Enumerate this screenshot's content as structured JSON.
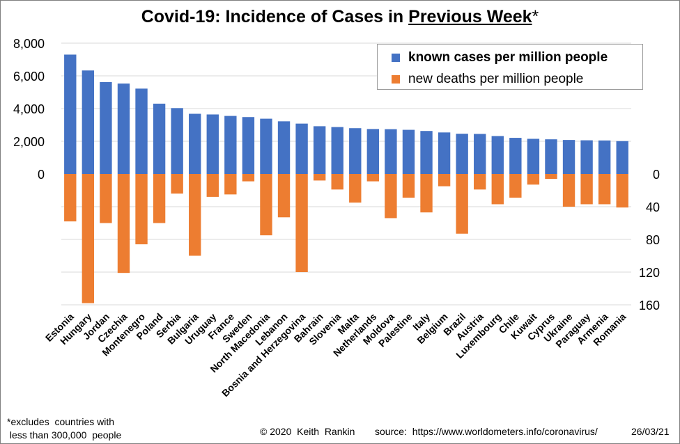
{
  "title": {
    "main": "Covid-19: Incidence of Cases in ",
    "underlined": "Previous Week",
    "suffix": "*"
  },
  "legend": {
    "cases_label": "known cases per million people",
    "deaths_label": "new deaths per million people"
  },
  "colors": {
    "cases": "#4472c4",
    "deaths": "#ed7d31",
    "grid": "#d9d9d9"
  },
  "footer": {
    "note_line1": "*excludes  countries with",
    "note_line2": " less than 300,000  people",
    "credit": "© 2020  Keith  Rankin",
    "source": "source:  https://www.worldometers.info/coronavirus/",
    "date": "26/03/21"
  },
  "chart_data": {
    "type": "bar",
    "categories": [
      "Estonia",
      "Hungary",
      "Jordan",
      "Czechia",
      "Montenegro",
      "Poland",
      "Serbia",
      "Bulgaria",
      "Uruguay",
      "France",
      "Sweden",
      "North Macedonia",
      "Lebanon",
      "Bosnia and Herzegovina",
      "Bahrain",
      "Slovenia",
      "Malta",
      "Netherlands",
      "Moldova",
      "Palestine",
      "Italy",
      "Belgium",
      "Brazil",
      "Austria",
      "Luxembourg",
      "Chile",
      "Kuwait",
      "Cyprus",
      "Ukraine",
      "Paraguay",
      "Armenia",
      "Romania"
    ],
    "series": [
      {
        "name": "known cases per million people",
        "axis": "left",
        "values": [
          7300,
          6330,
          5620,
          5530,
          5220,
          4300,
          4030,
          3680,
          3640,
          3550,
          3480,
          3380,
          3220,
          3080,
          2920,
          2870,
          2800,
          2750,
          2740,
          2700,
          2630,
          2540,
          2460,
          2450,
          2320,
          2210,
          2150,
          2120,
          2080,
          2060,
          2050,
          2010
        ]
      },
      {
        "name": "new deaths per million people",
        "axis": "right",
        "values": [
          58,
          158,
          60,
          121,
          86,
          60,
          24,
          100,
          28,
          25,
          9,
          75,
          53,
          120,
          8,
          19,
          35,
          9,
          54,
          29,
          47,
          15,
          73,
          19,
          37,
          29,
          13,
          6,
          40,
          37,
          37,
          41
        ]
      }
    ],
    "y_left": {
      "ticks": [
        "8,000",
        "6,000",
        "4,000",
        "2,000",
        "0"
      ],
      "range": [
        0,
        8000
      ]
    },
    "y_right": {
      "ticks": [
        "0",
        "40",
        "80",
        "120",
        "160"
      ],
      "range": [
        0,
        160
      ]
    },
    "grid": true,
    "legend_position": "top-right"
  }
}
